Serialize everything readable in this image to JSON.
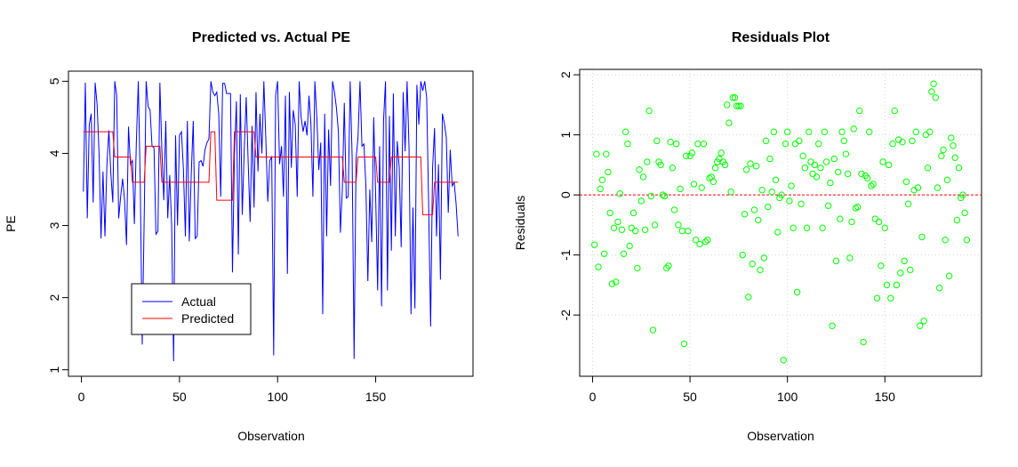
{
  "chart_data": [
    {
      "type": "line",
      "title": "Predicted vs. Actual PE",
      "xlabel": "Observation",
      "ylabel": "PE",
      "x": [
        1,
        2,
        3,
        4,
        5,
        6,
        7,
        8,
        9,
        10,
        11,
        12,
        13,
        14,
        15,
        16,
        17,
        18,
        19,
        20,
        21,
        22,
        23,
        24,
        25,
        26,
        27,
        28,
        29,
        30,
        31,
        32,
        33,
        34,
        35,
        36,
        37,
        38,
        39,
        40,
        41,
        42,
        43,
        44,
        45,
        46,
        47,
        48,
        49,
        50,
        51,
        52,
        53,
        54,
        55,
        56,
        57,
        58,
        59,
        60,
        61,
        62,
        63,
        64,
        65,
        66,
        67,
        68,
        69,
        70,
        71,
        72,
        73,
        74,
        75,
        76,
        77,
        78,
        79,
        80,
        81,
        82,
        83,
        84,
        85,
        86,
        87,
        88,
        89,
        90,
        91,
        92,
        93,
        94,
        95,
        96,
        97,
        98,
        99,
        100,
        101,
        102,
        103,
        104,
        105,
        106,
        107,
        108,
        109,
        110,
        111,
        112,
        113,
        114,
        115,
        116,
        117,
        118,
        119,
        120,
        121,
        122,
        123,
        124,
        125,
        126,
        127,
        128,
        129,
        130,
        131,
        132,
        133,
        134,
        135,
        136,
        137,
        138,
        139,
        140,
        141,
        142,
        143,
        144,
        145,
        146,
        147,
        148,
        149,
        150,
        151,
        152,
        153,
        154,
        155,
        156,
        157,
        158,
        159,
        160,
        161,
        162,
        163,
        164,
        165,
        166,
        167,
        168,
        169,
        170,
        171,
        172,
        173,
        174,
        175,
        176,
        177,
        178,
        179,
        180,
        181,
        182,
        183,
        184,
        185,
        186,
        187,
        188,
        189,
        190,
        191,
        192
      ],
      "series": [
        {
          "name": "Actual",
          "color": "#0000ff",
          "values": [
            3.47,
            4.98,
            3.1,
            4.4,
            4.55,
            3.32,
            4.98,
            4.68,
            4.0,
            2.82,
            3.75,
            2.85,
            3.85,
            4.32,
            3.72,
            3.32,
            5.0,
            4.8,
            3.1,
            3.4,
            3.65,
            3.35,
            2.73,
            4.37,
            3.85,
            3.9,
            3.02,
            4.15,
            5.0,
            3.58,
            1.35,
            3.1,
            5.0,
            4.65,
            4.6,
            4.1,
            4.08,
            2.88,
            2.92,
            4.98,
            4.05,
            3.35,
            4.45,
            3.1,
            3.7,
            3.0,
            1.12,
            4.25,
            3.0,
            4.25,
            4.3,
            3.78,
            2.85,
            4.45,
            2.78,
            3.72,
            4.45,
            2.82,
            2.85,
            3.88,
            3.9,
            3.82,
            4.05,
            4.15,
            4.2,
            5.0,
            4.85,
            4.8,
            4.85,
            4.55,
            3.4,
            4.97,
            4.97,
            4.83,
            4.83,
            4.83,
            2.35,
            3.98,
            4.72,
            2.6,
            4.82,
            3.15,
            4.05,
            4.78,
            3.88,
            3.05,
            4.38,
            3.25,
            4.85,
            3.75,
            4.55,
            4.0,
            5.0,
            4.2,
            3.33,
            3.9,
            3.95,
            1.2,
            4.8,
            5.0,
            3.85,
            4.1,
            3.4,
            4.8,
            2.33,
            4.85,
            3.8,
            4.6,
            4.4,
            3.4,
            5.0,
            4.5,
            4.3,
            4.45,
            4.25,
            4.8,
            4.4,
            3.4,
            5.0,
            4.5,
            3.77,
            4.15,
            1.77,
            4.55,
            2.85,
            4.33,
            3.55,
            5.0,
            4.85,
            4.63,
            4.3,
            2.9,
            3.5,
            4.7,
            3.38,
            3.4,
            5.0,
            3.95,
            1.15,
            3.92,
            4.23,
            5.0,
            4.1,
            4.13,
            3.55,
            2.23,
            3.5,
            2.77,
            4.5,
            3.4,
            2.1,
            4.1,
            1.88,
            4.45,
            5.0,
            2.1,
            4.52,
            2.65,
            4.83,
            2.85,
            4.17,
            3.8,
            2.7,
            4.85,
            4.03,
            5.0,
            4.07,
            1.77,
            3.25,
            1.85,
            4.95,
            4.4,
            5.0,
            4.87,
            5.0,
            4.77,
            3.27,
            1.6,
            3.8,
            4.35,
            2.85,
            3.85,
            2.25,
            4.55,
            4.42,
            4.22,
            3.18,
            4.05,
            3.55,
            3.6,
            3.3,
            2.85
          ]
        },
        {
          "name": "Predicted",
          "color": "#ff0000",
          "values": [
            4.3,
            4.3,
            4.3,
            4.3,
            4.3,
            4.3,
            4.3,
            4.3,
            4.3,
            4.3,
            4.3,
            4.3,
            4.3,
            4.3,
            4.3,
            4.3,
            3.95,
            3.95,
            3.95,
            3.95,
            3.95,
            3.95,
            3.95,
            3.95,
            3.95,
            3.6,
            3.6,
            3.6,
            3.6,
            3.6,
            3.6,
            3.6,
            4.1,
            4.1,
            4.1,
            4.1,
            4.1,
            4.1,
            4.1,
            4.1,
            3.6,
            3.6,
            3.6,
            3.6,
            3.6,
            3.6,
            3.6,
            3.6,
            3.6,
            3.6,
            3.6,
            3.6,
            3.6,
            3.6,
            3.6,
            3.6,
            3.6,
            3.6,
            3.6,
            3.6,
            3.6,
            3.6,
            3.6,
            3.6,
            3.6,
            4.3,
            4.3,
            4.3,
            3.35,
            3.35,
            3.35,
            3.35,
            3.35,
            3.35,
            3.35,
            3.35,
            3.35,
            4.3,
            4.3,
            4.3,
            4.3,
            4.3,
            4.3,
            4.3,
            4.3,
            4.3,
            4.3,
            4.3,
            3.95,
            3.95,
            3.95,
            3.95,
            3.95,
            3.95,
            3.95,
            3.95,
            3.95,
            3.95,
            3.95,
            3.95,
            3.95,
            3.95,
            3.95,
            3.95,
            3.95,
            3.95,
            3.95,
            3.95,
            3.95,
            3.95,
            3.95,
            3.95,
            3.95,
            3.95,
            3.95,
            3.95,
            3.95,
            3.95,
            3.95,
            3.95,
            3.95,
            3.95,
            3.95,
            3.95,
            3.95,
            3.95,
            3.95,
            3.95,
            3.95,
            3.95,
            3.95,
            3.95,
            3.95,
            3.6,
            3.6,
            3.6,
            3.6,
            3.6,
            3.6,
            3.6,
            3.95,
            3.95,
            3.95,
            3.95,
            3.95,
            3.95,
            3.95,
            3.95,
            3.95,
            3.95,
            3.6,
            3.6,
            3.6,
            3.6,
            3.6,
            3.6,
            3.6,
            3.95,
            3.95,
            3.95,
            3.95,
            3.95,
            3.95,
            3.95,
            3.95,
            3.95,
            3.95,
            3.95,
            3.95,
            3.95,
            3.95,
            3.95,
            3.95,
            3.15,
            3.15,
            3.15,
            3.15,
            3.15,
            3.15,
            3.6,
            3.6,
            3.6,
            3.6,
            3.6,
            3.6,
            3.6,
            3.6,
            3.6,
            3.6,
            3.6,
            3.6,
            3.6
          ]
        }
      ],
      "xlim": [
        -6.6,
        199.6
      ],
      "xticks": [
        0,
        50,
        100,
        150
      ],
      "ylim": [
        0.91,
        5.14
      ],
      "yticks": [
        1,
        2,
        3,
        4,
        5
      ],
      "legend": "bottom-left"
    },
    {
      "type": "scatter",
      "title": "Residuals Plot",
      "xlabel": "Observation",
      "ylabel": "Residuals",
      "x": [
        1,
        2,
        3,
        4,
        5,
        6,
        7,
        8,
        9,
        10,
        11,
        12,
        13,
        14,
        15,
        16,
        17,
        18,
        19,
        20,
        21,
        22,
        23,
        24,
        25,
        26,
        27,
        28,
        29,
        30,
        31,
        32,
        33,
        34,
        35,
        36,
        37,
        38,
        39,
        40,
        41,
        42,
        43,
        44,
        45,
        46,
        47,
        48,
        49,
        50,
        51,
        52,
        53,
        54,
        55,
        56,
        57,
        58,
        59,
        60,
        61,
        62,
        63,
        64,
        65,
        66,
        67,
        68,
        69,
        70,
        71,
        72,
        73,
        74,
        75,
        76,
        77,
        78,
        79,
        80,
        81,
        82,
        83,
        84,
        85,
        86,
        87,
        88,
        89,
        90,
        91,
        92,
        93,
        94,
        95,
        96,
        97,
        98,
        99,
        100,
        101,
        102,
        103,
        104,
        105,
        106,
        107,
        108,
        109,
        110,
        111,
        112,
        113,
        114,
        115,
        116,
        117,
        118,
        119,
        120,
        121,
        122,
        123,
        124,
        125,
        126,
        127,
        128,
        129,
        130,
        131,
        132,
        133,
        134,
        135,
        136,
        137,
        138,
        139,
        140,
        141,
        142,
        143,
        144,
        145,
        146,
        147,
        148,
        149,
        150,
        151,
        152,
        153,
        154,
        155,
        156,
        157,
        158,
        159,
        160,
        161,
        162,
        163,
        164,
        165,
        166,
        167,
        168,
        169,
        170,
        171,
        172,
        173,
        174,
        175,
        176,
        177,
        178,
        179,
        180,
        181,
        182,
        183,
        184,
        185,
        186,
        187,
        188,
        189,
        190,
        191,
        192
      ],
      "color": "#00ff00",
      "values": [
        -0.83,
        0.68,
        -1.2,
        0.1,
        0.25,
        -0.98,
        0.68,
        0.38,
        -0.3,
        -1.48,
        -0.55,
        -1.45,
        -0.45,
        0.02,
        -0.58,
        -0.98,
        1.05,
        0.85,
        -0.85,
        -0.55,
        -0.3,
        -0.6,
        -1.22,
        0.42,
        -0.1,
        0.3,
        -0.58,
        0.55,
        1.4,
        -0.02,
        -2.25,
        -0.5,
        0.9,
        0.55,
        0.5,
        0.0,
        -0.02,
        -1.22,
        -1.18,
        0.88,
        0.45,
        -0.25,
        0.85,
        -0.5,
        0.1,
        -0.6,
        -2.48,
        0.65,
        -0.6,
        0.65,
        0.7,
        0.18,
        -0.75,
        0.85,
        -0.82,
        0.12,
        0.85,
        -0.78,
        -0.75,
        0.28,
        0.3,
        0.22,
        0.45,
        0.55,
        0.6,
        0.7,
        0.55,
        0.5,
        1.5,
        1.2,
        0.05,
        1.62,
        1.62,
        1.48,
        1.48,
        1.48,
        -1.0,
        -0.32,
        0.42,
        -1.7,
        0.52,
        -1.15,
        -0.25,
        0.48,
        -0.42,
        -1.25,
        0.08,
        -1.05,
        0.9,
        -0.2,
        0.6,
        0.05,
        1.05,
        0.25,
        -0.62,
        -0.05,
        0.0,
        -2.75,
        0.85,
        1.05,
        -0.1,
        0.15,
        -0.55,
        0.85,
        -1.62,
        0.9,
        -0.15,
        0.65,
        0.45,
        -0.55,
        1.05,
        0.55,
        0.35,
        0.5,
        0.3,
        0.85,
        0.45,
        -0.55,
        1.05,
        0.55,
        -0.18,
        0.2,
        -2.18,
        0.6,
        -1.1,
        0.38,
        -0.4,
        1.05,
        0.9,
        0.68,
        0.35,
        -1.05,
        -0.45,
        1.1,
        -0.22,
        -0.2,
        1.4,
        0.35,
        -2.45,
        0.32,
        0.28,
        1.05,
        0.15,
        0.18,
        -0.4,
        -1.72,
        -0.45,
        -1.18,
        0.55,
        -0.55,
        -1.5,
        0.5,
        -1.72,
        0.85,
        1.4,
        -1.5,
        0.92,
        -1.3,
        0.88,
        -1.1,
        0.22,
        -0.15,
        -1.25,
        0.9,
        0.08,
        1.05,
        0.12,
        -2.18,
        -0.7,
        -2.1,
        1.0,
        0.45,
        1.05,
        1.72,
        1.85,
        1.62,
        0.12,
        -1.55,
        0.65,
        0.75,
        -0.75,
        0.25,
        -1.35,
        0.95,
        0.82,
        0.62,
        -0.42,
        0.45,
        -0.05,
        0.0,
        -0.3,
        -0.75
      ],
      "xlim": [
        -6.6,
        199.6
      ],
      "xticks": [
        0,
        50,
        100,
        150
      ],
      "ylim": [
        -3.02,
        2.09
      ],
      "yticks": [
        -2,
        -1,
        0,
        1,
        2
      ],
      "grid": true,
      "reference_line": {
        "value": 0,
        "color": "#ff0000"
      }
    }
  ]
}
